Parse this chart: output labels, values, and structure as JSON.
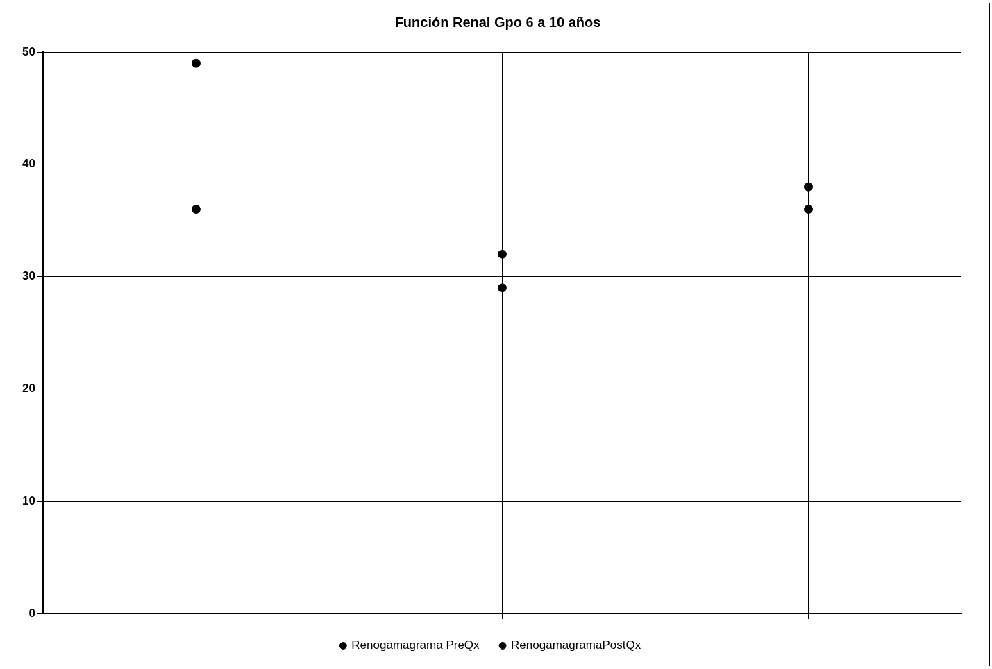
{
  "chart_data": {
    "type": "scatter",
    "title": "Función Renal Gpo 6 a 10 años",
    "categories": [
      null,
      null,
      null
    ],
    "series": [
      {
        "name": "Renogamagrama PreQx",
        "color": "#000000",
        "values": [
          49,
          29,
          38
        ]
      },
      {
        "name": "RenogamagramaPostQx",
        "color": "#000000",
        "values": [
          36,
          32,
          36
        ]
      }
    ],
    "ylim": [
      0,
      50
    ],
    "yticks": [
      0,
      10,
      20,
      30,
      40,
      50
    ],
    "grid": true,
    "legend": "bottom",
    "marker": "circle",
    "tick_labels": "y"
  }
}
